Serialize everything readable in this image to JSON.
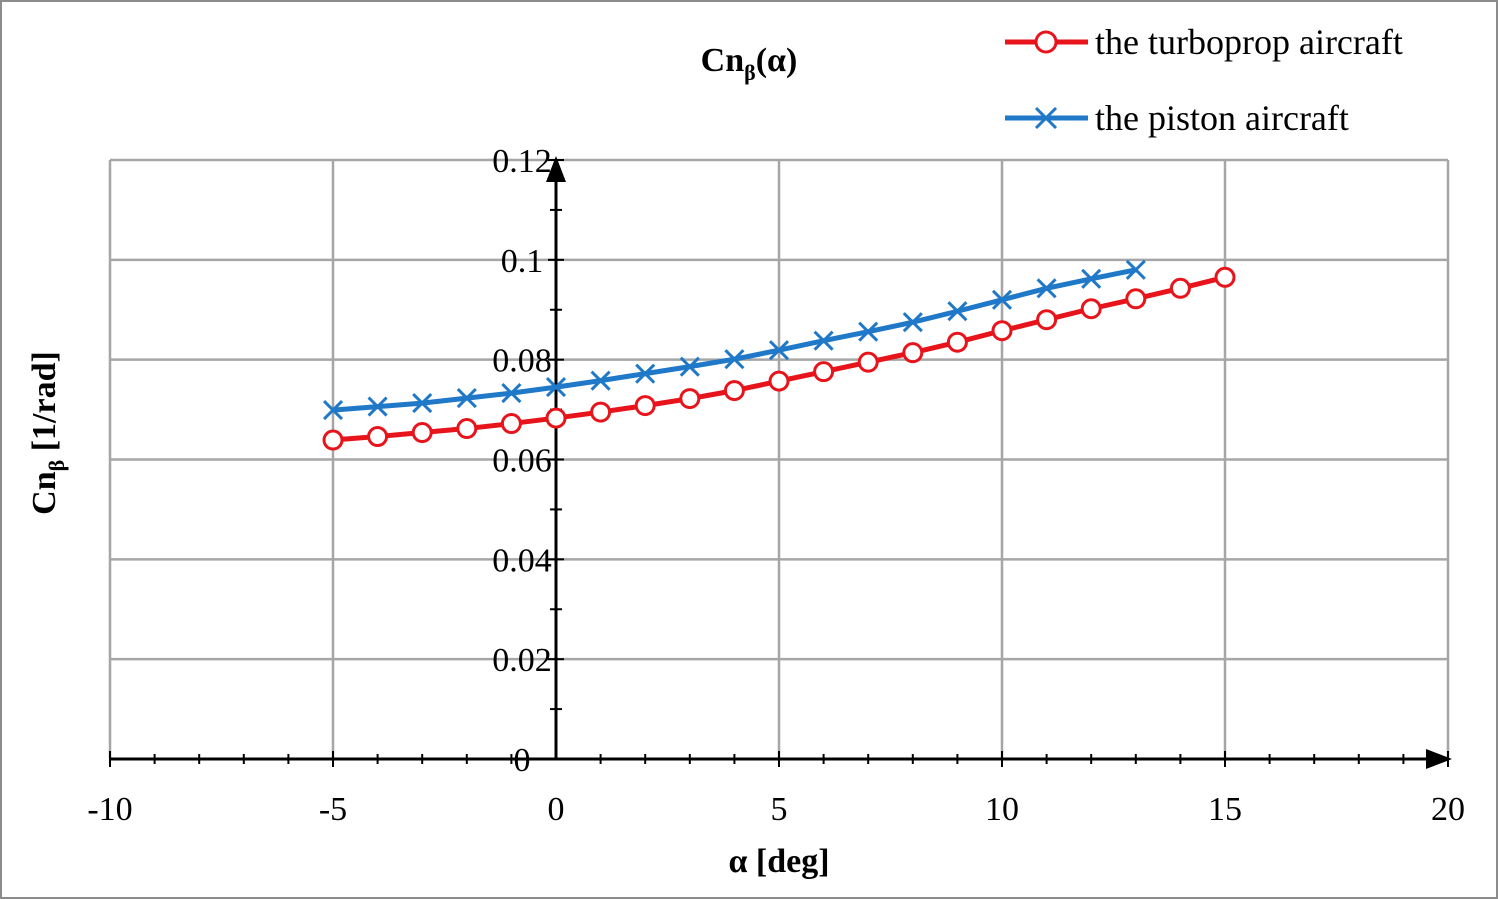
{
  "chart_data": {
    "type": "line",
    "title_main": "Cn",
    "title_sub": "β",
    "title_tail": "(α)",
    "xlabel": "α [deg]",
    "ylabel_main": "Cn",
    "ylabel_sub": "β",
    "ylabel_tail": " [1/rad]",
    "xlim": [
      -10,
      20
    ],
    "ylim": [
      0,
      0.12
    ],
    "x_ticks": [
      -10,
      -5,
      0,
      5,
      10,
      15,
      20
    ],
    "y_ticks": [
      0,
      0.02,
      0.04,
      0.06,
      0.08,
      0.1,
      0.12
    ],
    "x_tick_labels": [
      "-10",
      "-5",
      "0",
      "5",
      "10",
      "15",
      "20"
    ],
    "y_tick_labels": [
      "0",
      "0.02",
      "0.04",
      "0.06",
      "0.08",
      "0.1",
      "0.12"
    ],
    "grid": true,
    "legend_position": "top-right",
    "series": [
      {
        "name": "the turboprop aircraft",
        "color": "#e8141b",
        "marker": "circle",
        "x": [
          -5,
          -4,
          -3,
          -2,
          -1,
          0,
          1,
          2,
          3,
          4,
          5,
          6,
          7,
          8,
          9,
          10,
          11,
          12,
          13,
          14,
          15
        ],
        "y": [
          0.0639,
          0.0646,
          0.0654,
          0.0662,
          0.0672,
          0.0683,
          0.0695,
          0.0708,
          0.0722,
          0.0738,
          0.0757,
          0.0776,
          0.0795,
          0.0814,
          0.0835,
          0.0858,
          0.088,
          0.0902,
          0.0922,
          0.0943,
          0.0965
        ]
      },
      {
        "name": "the piston aircraft",
        "color": "#1f78c8",
        "marker": "x",
        "x": [
          -5,
          -4,
          -3,
          -2,
          -1,
          0,
          1,
          2,
          3,
          4,
          5,
          6,
          7,
          8,
          9,
          10,
          11,
          12,
          13
        ],
        "y": [
          0.0699,
          0.0706,
          0.0713,
          0.0723,
          0.0733,
          0.0745,
          0.0758,
          0.0772,
          0.0786,
          0.0801,
          0.0819,
          0.0838,
          0.0856,
          0.0875,
          0.0897,
          0.092,
          0.0943,
          0.0962,
          0.098
        ]
      }
    ]
  }
}
